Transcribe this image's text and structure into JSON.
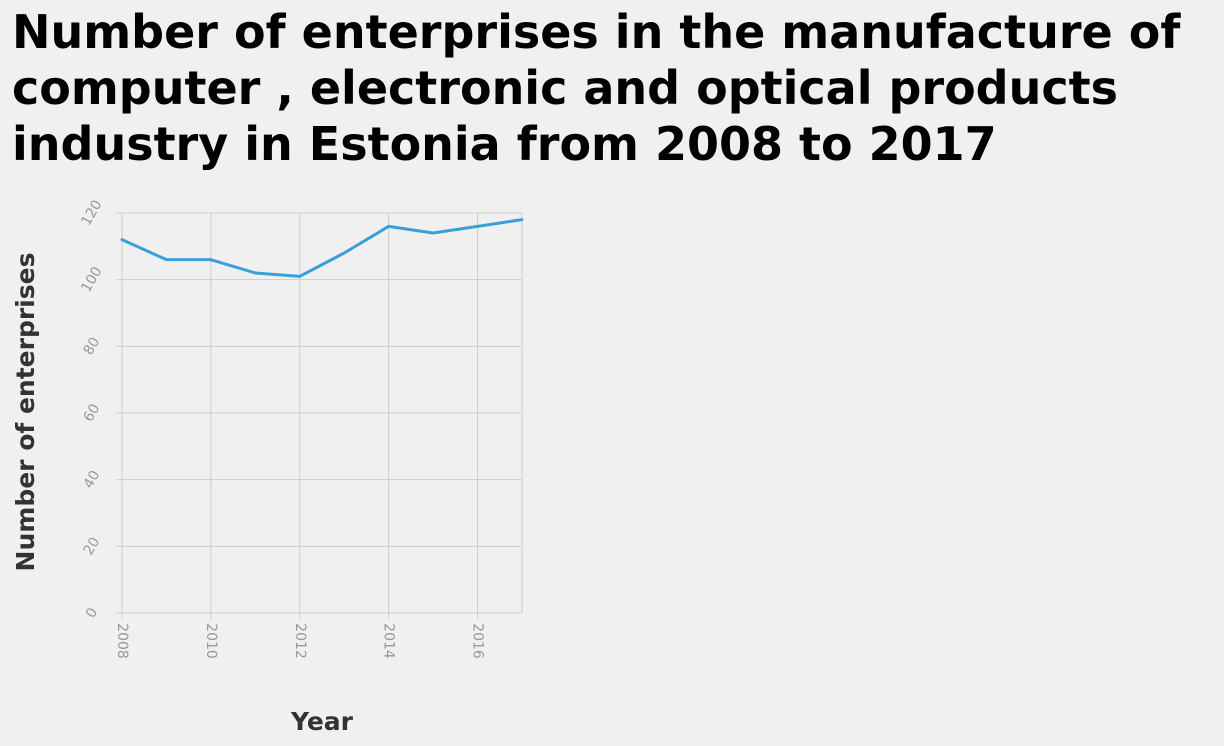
{
  "chart_data": {
    "type": "line",
    "title": "Number of enterprises in the manufacture of computer , electronic and optical products industry in Estonia from 2008 to 2017",
    "xlabel": "Year",
    "ylabel": "Number of enterprises",
    "x": [
      2008,
      2009,
      2010,
      2011,
      2012,
      2013,
      2014,
      2015,
      2016,
      2017
    ],
    "series": [
      {
        "values": [
          112,
          106,
          106,
          102,
          101,
          108,
          116,
          114,
          116,
          118
        ]
      }
    ],
    "xticks": [
      "2008",
      "2010",
      "2012",
      "2014",
      "2016"
    ],
    "yticks": [
      "0",
      "20",
      "40",
      "60",
      "80",
      "100",
      "120"
    ],
    "xlim": [
      2008,
      2017
    ],
    "ylim": [
      0,
      120
    ],
    "grid": true,
    "line_color": "#3a9fd8"
  }
}
